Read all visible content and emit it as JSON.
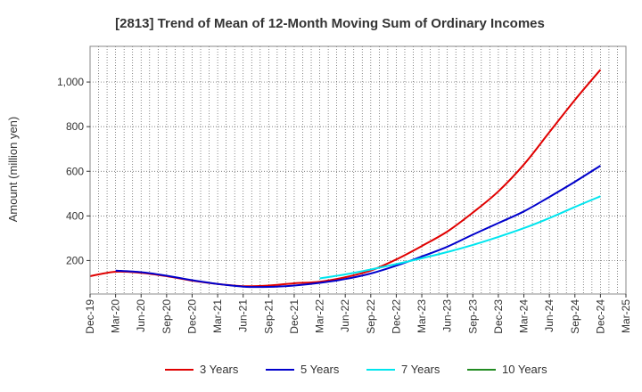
{
  "chart_data": {
    "type": "line",
    "title": "[2813]  Trend of Mean of 12-Month Moving Sum of Ordinary Incomes",
    "xlabel": "",
    "ylabel": "Amount (million yen)",
    "x_ticks": [
      "Dec-19",
      "Mar-20",
      "Jun-20",
      "Sep-20",
      "Dec-20",
      "Mar-21",
      "Jun-21",
      "Sep-21",
      "Dec-21",
      "Mar-22",
      "Jun-22",
      "Sep-22",
      "Dec-22",
      "Mar-23",
      "Jun-23",
      "Sep-23",
      "Dec-23",
      "Mar-24",
      "Jun-24",
      "Sep-24",
      "Dec-24",
      "Mar-25"
    ],
    "y_ticks": [
      200,
      400,
      600,
      800,
      1000
    ],
    "y_tick_labels": [
      "200",
      "400",
      "600",
      "800",
      "1,000"
    ],
    "ylim": [
      50,
      1160
    ],
    "grid": true,
    "legend_position": "bottom",
    "series": [
      {
        "name": "3 Years",
        "color": "#e00000",
        "x": [
          0,
          1,
          2,
          3,
          4,
          5,
          6,
          7,
          8,
          9,
          10,
          11,
          12,
          13,
          14,
          15,
          16,
          17,
          18,
          19,
          20
        ],
        "values": [
          130,
          150,
          145,
          130,
          110,
          95,
          85,
          88,
          98,
          105,
          125,
          155,
          205,
          265,
          330,
          415,
          510,
          630,
          775,
          920,
          1055
        ]
      },
      {
        "name": "5 Years",
        "color": "#0000cc",
        "x": [
          1,
          2,
          3,
          4,
          5,
          6,
          7,
          8,
          9,
          10,
          11,
          12,
          13,
          14,
          15,
          16,
          17,
          18,
          19,
          20
        ],
        "values": [
          155,
          148,
          132,
          112,
          95,
          83,
          82,
          88,
          100,
          117,
          142,
          177,
          218,
          262,
          316,
          368,
          420,
          485,
          553,
          625
        ]
      },
      {
        "name": "7 Years",
        "color": "#00e5ee",
        "x": [
          9,
          10,
          11,
          12,
          13,
          14,
          15,
          16,
          17,
          18,
          19,
          20
        ],
        "values": [
          120,
          138,
          160,
          184,
          210,
          238,
          270,
          306,
          345,
          390,
          440,
          488
        ]
      },
      {
        "name": "10 Years",
        "color": "#228b22",
        "x": [],
        "values": []
      }
    ]
  }
}
